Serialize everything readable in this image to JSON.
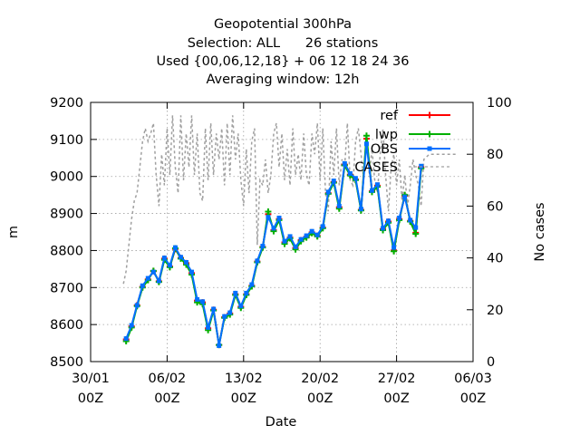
{
  "chart_data": {
    "type": "line",
    "title_lines": [
      "Geopotential 300hPa",
      "Selection: ALL      26 stations",
      "Used {00,06,12,18} + 06 12 18 24 36",
      "Averaging window: 12h"
    ],
    "xlabel": "Date",
    "ylabel": "m",
    "y2label": "No cases",
    "x_ticks": [
      {
        "t": 0,
        "line1": "30/01",
        "line2": "00Z"
      },
      {
        "t": 7,
        "line1": "06/02",
        "line2": "00Z"
      },
      {
        "t": 14,
        "line1": "13/02",
        "line2": "00Z"
      },
      {
        "t": 21,
        "line1": "20/02",
        "line2": "00Z"
      },
      {
        "t": 28,
        "line1": "27/02",
        "line2": "00Z"
      },
      {
        "t": 35,
        "line1": "06/03",
        "line2": "00Z"
      }
    ],
    "xlim": [
      0,
      35
    ],
    "ylim": [
      8500,
      9200
    ],
    "y_ticks": [
      8500,
      8600,
      8700,
      8800,
      8900,
      9000,
      9100,
      9200
    ],
    "y2lim": [
      0,
      100
    ],
    "y2_ticks": [
      0,
      20,
      40,
      60,
      80,
      100
    ],
    "grid": true,
    "legend_position": "top-right",
    "series": [
      {
        "name": "ref",
        "color": "#ff0000",
        "axis": "y",
        "marker": "plus",
        "x": [
          3.25,
          3.75,
          4.25,
          4.75,
          5.25,
          5.75,
          6.25,
          6.75,
          7.25,
          7.75,
          8.25,
          8.75,
          9.25,
          9.75,
          10.25,
          10.75,
          11.25,
          11.75,
          12.25,
          12.75,
          13.25,
          13.75,
          14.25,
          14.75,
          15.25,
          15.75,
          16.25,
          16.75,
          17.25,
          17.75,
          18.25,
          18.75,
          19.25,
          19.75,
          20.25,
          20.75,
          21.25,
          21.75,
          22.25,
          22.75,
          23.25,
          23.75,
          24.25,
          24.75,
          25.25,
          25.75,
          26.25,
          26.75,
          27.25,
          27.75,
          28.25,
          28.75,
          29.25,
          29.75,
          30.25
        ],
        "y": [
          8560,
          8595,
          8652,
          8702,
          8722,
          8744,
          8717,
          8778,
          8757,
          8804,
          8780,
          8766,
          8739,
          8665,
          8660,
          8590,
          8640,
          8545,
          8620,
          8630,
          8682,
          8648,
          8682,
          8705,
          8770,
          8810,
          8898,
          8855,
          8885,
          8822,
          8835,
          8807,
          8828,
          8837,
          8849,
          8840,
          8862,
          8955,
          8985,
          8917,
          9032,
          9005,
          8992,
          8910,
          9102,
          8960,
          8975,
          8858,
          8878,
          8800,
          8885,
          8948,
          8880,
          8848,
          9025
        ]
      },
      {
        "name": "lwp",
        "color": "#00b000",
        "axis": "y",
        "marker": "plus",
        "x": [
          3.25,
          3.75,
          4.25,
          4.75,
          5.25,
          5.75,
          6.25,
          6.75,
          7.25,
          7.75,
          8.25,
          8.75,
          9.25,
          9.75,
          10.25,
          10.75,
          11.25,
          11.75,
          12.25,
          12.75,
          13.25,
          13.75,
          14.25,
          14.75,
          15.25,
          15.75,
          16.25,
          16.75,
          17.25,
          17.75,
          18.25,
          18.75,
          19.25,
          19.75,
          20.25,
          20.75,
          21.25,
          21.75,
          22.25,
          22.75,
          23.25,
          23.75,
          24.25,
          24.75,
          25.25,
          25.75,
          26.25,
          26.75,
          27.25,
          27.75,
          28.25,
          28.75,
          29.25,
          29.75,
          30.25
        ],
        "y": [
          8555,
          8592,
          8650,
          8700,
          8720,
          8745,
          8715,
          8775,
          8755,
          8806,
          8778,
          8762,
          8735,
          8660,
          8655,
          8585,
          8638,
          8545,
          8618,
          8627,
          8680,
          8645,
          8680,
          8703,
          8768,
          8808,
          8905,
          8852,
          8882,
          8818,
          8833,
          8803,
          8825,
          8835,
          8847,
          8838,
          8860,
          8953,
          8983,
          8913,
          9030,
          9003,
          8990,
          8908,
          9110,
          8958,
          8972,
          8855,
          8875,
          8798,
          8882,
          8950,
          8878,
          8845,
          9022
        ]
      },
      {
        "name": "OBS",
        "color": "#0070ff",
        "axis": "y",
        "marker": "box",
        "x": [
          3.25,
          3.75,
          4.25,
          4.75,
          5.25,
          5.75,
          6.25,
          6.75,
          7.25,
          7.75,
          8.25,
          8.75,
          9.25,
          9.75,
          10.25,
          10.75,
          11.25,
          11.75,
          12.25,
          12.75,
          13.25,
          13.75,
          14.25,
          14.75,
          15.25,
          15.75,
          16.25,
          16.75,
          17.25,
          17.75,
          18.25,
          18.75,
          19.25,
          19.75,
          20.25,
          20.75,
          21.25,
          21.75,
          22.25,
          22.75,
          23.25,
          23.75,
          24.25,
          24.75,
          25.25,
          25.75,
          26.25,
          26.75,
          27.25,
          27.75,
          28.25,
          28.75,
          29.25,
          29.75,
          30.25
        ],
        "y": [
          8562,
          8598,
          8652,
          8705,
          8725,
          8742,
          8718,
          8780,
          8760,
          8808,
          8782,
          8768,
          8742,
          8668,
          8662,
          8592,
          8642,
          8543,
          8622,
          8632,
          8685,
          8650,
          8685,
          8708,
          8772,
          8812,
          8890,
          8860,
          8888,
          8825,
          8838,
          8810,
          8830,
          8840,
          8852,
          8842,
          8865,
          8958,
          8988,
          8920,
          9035,
          9008,
          8995,
          8912,
          9088,
          8962,
          8978,
          8860,
          8880,
          8808,
          8888,
          8945,
          8882,
          8862,
          9028
        ]
      },
      {
        "name": "CASES",
        "color": "#a0a0a0",
        "axis": "y2",
        "marker": "none",
        "x": [
          3.0,
          3.25,
          3.5,
          3.75,
          4.0,
          4.25,
          4.5,
          4.75,
          5.0,
          5.25,
          5.5,
          5.75,
          6.0,
          6.25,
          6.5,
          6.75,
          7.0,
          7.25,
          7.5,
          7.75,
          8.0,
          8.25,
          8.5,
          8.75,
          9.0,
          9.25,
          9.5,
          9.75,
          10.0,
          10.25,
          10.5,
          10.75,
          11.0,
          11.25,
          11.5,
          11.75,
          12.0,
          12.25,
          12.5,
          12.75,
          13.0,
          13.25,
          13.5,
          13.75,
          14.0,
          14.25,
          14.5,
          14.75,
          15.0,
          15.25,
          15.5,
          15.75,
          16.0,
          16.25,
          16.5,
          16.75,
          17.0,
          17.25,
          17.5,
          17.75,
          18.0,
          18.25,
          18.5,
          18.75,
          19.0,
          19.25,
          19.5,
          19.75,
          20.0,
          20.25,
          20.5,
          20.75,
          21.0,
          21.25,
          21.5,
          21.75,
          22.0,
          22.25,
          22.5,
          22.75,
          23.0,
          23.25,
          23.5,
          23.75,
          24.0,
          24.25,
          24.5,
          24.75,
          25.0,
          25.25,
          25.5,
          25.75,
          26.0,
          26.25,
          26.5,
          26.75,
          27.0,
          27.25,
          27.5,
          27.75,
          28.0,
          28.25,
          28.5,
          28.75,
          29.0,
          29.25,
          29.5,
          29.75,
          30.0,
          30.25,
          30.5,
          31.0,
          31.5,
          32.0,
          32.5,
          33.0,
          33.5
        ],
        "y": [
          30,
          35,
          45,
          55,
          62,
          65,
          75,
          85,
          90,
          85,
          88,
          92,
          72,
          60,
          80,
          68,
          90,
          72,
          95,
          75,
          65,
          95,
          70,
          88,
          75,
          95,
          72,
          88,
          65,
          62,
          90,
          70,
          92,
          72,
          88,
          78,
          90,
          68,
          92,
          72,
          95,
          78,
          88,
          70,
          60,
          82,
          65,
          85,
          90,
          45,
          70,
          68,
          78,
          65,
          72,
          88,
          92,
          75,
          88,
          70,
          82,
          68,
          90,
          72,
          80,
          70,
          88,
          72,
          68,
          88,
          80,
          92,
          70,
          90,
          65,
          58,
          85,
          72,
          90,
          68,
          78,
          75,
          92,
          70,
          68,
          85,
          90,
          80,
          70,
          88,
          72,
          82,
          70,
          65,
          80,
          90,
          72,
          58,
          75,
          80,
          68,
          78,
          62,
          72,
          60,
          68,
          78,
          72,
          68,
          60,
          78,
          80,
          80,
          80,
          80,
          80,
          80
        ]
      }
    ]
  }
}
